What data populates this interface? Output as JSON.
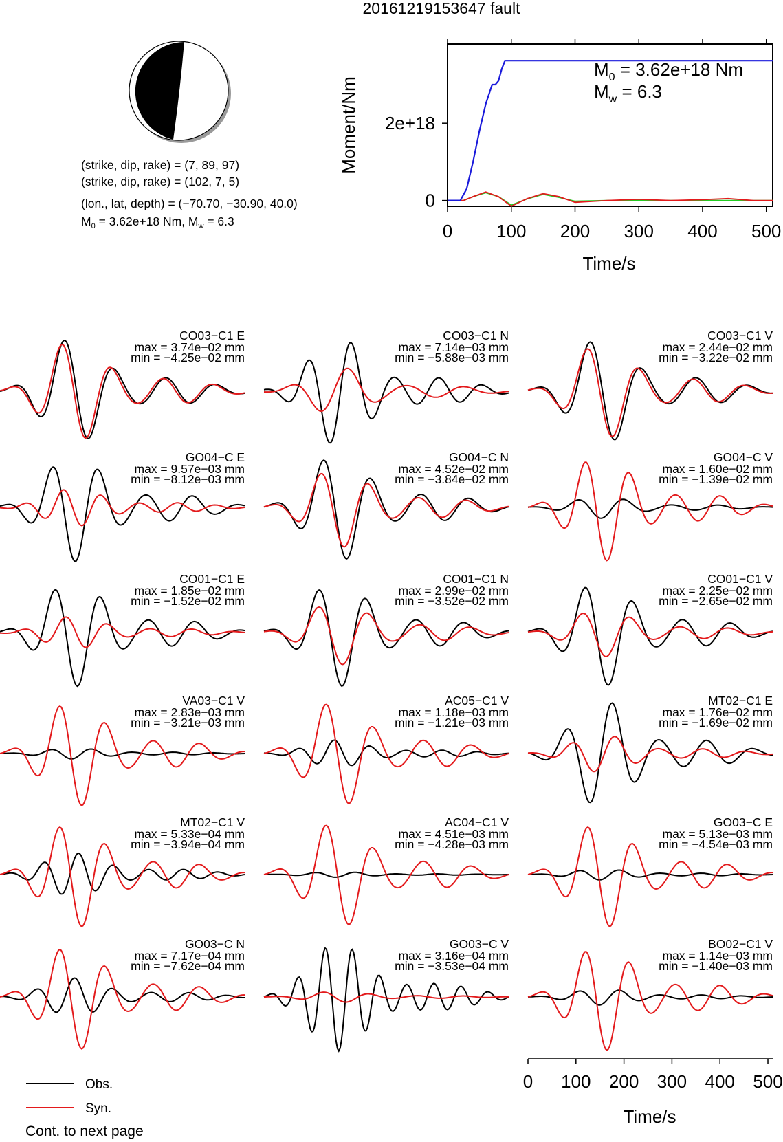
{
  "title": "20161219153647 fault",
  "mechanism": {
    "line1": "(strike, dip, rake) = (7, 89, 97)",
    "line2": "(strike, dip, rake) = (102, 7, 5)",
    "line3": "(lon., lat, depth) = (−70.70, −30.90, 40.0)",
    "m0_prefix": "M",
    "m0_sub": "0",
    "m0_rest": " = 3.62e+18 Nm, M",
    "mw_sub": "w",
    "mw_rest": " = 6.3"
  },
  "colors": {
    "obs": "#000000",
    "syn": "#e31a1c",
    "moment": "#1a1adb",
    "green": "#22cc22"
  },
  "moment_plot": {
    "ylabel": "Moment/Nm",
    "xlabel": "Time/s",
    "xticks": [
      "0",
      "100",
      "200",
      "300",
      "400",
      "500"
    ],
    "ytick_labels": [
      "0",
      "2e+18"
    ],
    "m0_sym": "M",
    "m0_sub": "0",
    "m0_text": " = 3.62e+18 Nm",
    "mw_sym": "M",
    "mw_sub": "w",
    "mw_text": " = 6.3"
  },
  "chart_data": {
    "type": "line",
    "title": "20161219153647 fault",
    "moment_rate_function": {
      "xlabel": "Time/s",
      "ylabel": "Moment/Nm",
      "xlim": [
        0,
        510
      ],
      "ylim": [
        -1.5e+17,
        4.05e+18
      ],
      "cumulative_moment": {
        "x": [
          0,
          20,
          30,
          40,
          50,
          60,
          70,
          75,
          80,
          85,
          90,
          510
        ],
        "y": [
          0,
          0,
          3e+17,
          1e+18,
          1.8e+18,
          2.5e+18,
          3e+18,
          3e+18,
          3.1e+18,
          3.4e+18,
          3.62e+18,
          3.62e+18
        ]
      },
      "red_curve": {
        "x": [
          0,
          25,
          40,
          60,
          80,
          100,
          125,
          150,
          175,
          200,
          250,
          300,
          350,
          400,
          440,
          480,
          510
        ],
        "y": [
          0,
          0,
          1e+17,
          2.2e+17,
          1e+17,
          -1.5e+17,
          5e+16,
          1.8e+17,
          1e+17,
          -5e+16,
          0.0,
          3e+16,
          0.0,
          2e+16,
          5e+16,
          0.0,
          0.0
        ]
      },
      "green_curve": {
        "x": [
          0,
          25,
          40,
          60,
          80,
          100,
          125,
          150,
          175,
          200,
          250,
          300,
          350,
          400,
          440,
          480,
          510
        ],
        "y": [
          0,
          0,
          1e+17,
          2e+17,
          1e+17,
          -1.2e+17,
          4e+16,
          1.6e+17,
          8e+16,
          -2e+16,
          0.0,
          1e+16,
          0.0,
          0.0,
          0.0,
          0.0,
          0.0
        ]
      }
    },
    "waveform_time_axis": {
      "xlabel": "Time/s",
      "ticks": [
        "0",
        "100",
        "200",
        "300",
        "400",
        "500"
      ],
      "xlim": [
        0,
        510
      ]
    },
    "legend": {
      "obs": "Obs.",
      "syn": "Syn."
    },
    "stations": [
      {
        "label": "CO03−C1 E",
        "max": "max = 3.74e−02 mm",
        "min": "min = −4.25e−02 mm",
        "obs_amp": 1.0,
        "syn_amp": 0.95,
        "obs_freq": 2.4,
        "syn_freq": 2.4,
        "phase": 0.0,
        "syn_phase": 0.1
      },
      {
        "label": "CO03−C1 N",
        "max": "max = 7.14e−03 mm",
        "min": "min = −5.88e−03 mm",
        "obs_amp": 1.0,
        "syn_amp": 0.45,
        "obs_freq": 2.8,
        "syn_freq": 2.1,
        "phase": 0.5,
        "syn_phase": 1.6
      },
      {
        "label": "CO03−C1 V",
        "max": "max = 2.44e−02 mm",
        "min": "min = −3.22e−02 mm",
        "obs_amp": 1.0,
        "syn_amp": 0.9,
        "obs_freq": 2.3,
        "syn_freq": 2.3,
        "phase": 0.2,
        "syn_phase": 0.3
      },
      {
        "label": "GO04−C E",
        "max": "max = 9.57e−03 mm",
        "min": "min = −8.12e−03 mm",
        "obs_amp": 1.0,
        "syn_amp": 0.35,
        "obs_freq": 2.6,
        "syn_freq": 3.2,
        "phase": 0.3,
        "syn_phase": 1.2
      },
      {
        "label": "GO04−C N",
        "max": "max = 4.52e−02 mm",
        "min": "min = −3.84e−02 mm",
        "obs_amp": 1.0,
        "syn_amp": 0.75,
        "obs_freq": 2.5,
        "syn_freq": 2.5,
        "phase": 0.1,
        "syn_phase": 0.2
      },
      {
        "label": "GO04−C V",
        "max": "max = 1.60e−02 mm",
        "min": "min = −1.39e−02 mm",
        "obs_amp": 0.2,
        "syn_amp": 1.0,
        "obs_freq": 2.6,
        "syn_freq": 2.7,
        "phase": 0.4,
        "syn_phase": 0.0
      },
      {
        "label": "CO01−C1 E",
        "max": "max = 1.85e−02 mm",
        "min": "min = −1.52e−02 mm",
        "obs_amp": 1.0,
        "syn_amp": 0.3,
        "obs_freq": 2.6,
        "syn_freq": 2.9,
        "phase": 0.2,
        "syn_phase": 1.4
      },
      {
        "label": "CO01−C1 N",
        "max": "max = 2.99e−02 mm",
        "min": "min = −3.52e−02 mm",
        "obs_amp": 1.0,
        "syn_amp": 0.6,
        "obs_freq": 2.5,
        "syn_freq": 2.4,
        "phase": 0.3,
        "syn_phase": 0.4
      },
      {
        "label": "CO01−C1 V",
        "max": "max = 2.25e−02 mm",
        "min": "min = −2.65e−02 mm",
        "obs_amp": 1.0,
        "syn_amp": 0.45,
        "obs_freq": 2.5,
        "syn_freq": 2.5,
        "phase": 0.2,
        "syn_phase": 0.3
      },
      {
        "label": "VA03−C1 V",
        "max": "max = 2.83e−03 mm",
        "min": "min = −3.21e−03 mm",
        "obs_amp": 0.1,
        "syn_amp": 1.0,
        "obs_freq": 3.0,
        "syn_freq": 2.6,
        "phase": 0.0,
        "syn_phase": 0.0
      },
      {
        "label": "AC05−C1 V",
        "max": "max = 1.18e−03 mm",
        "min": "min = −1.21e−03 mm",
        "obs_amp": 0.25,
        "syn_amp": 1.0,
        "obs_freq": 3.4,
        "syn_freq": 2.5,
        "phase": 0.6,
        "syn_phase": 0.0
      },
      {
        "label": "MT02−C1 E",
        "max": "max = 1.76e−02 mm",
        "min": "min = −1.69e−02 mm",
        "obs_amp": 1.0,
        "syn_amp": 0.35,
        "obs_freq": 2.6,
        "syn_freq": 2.8,
        "phase": 0.9,
        "syn_phase": 0.5
      },
      {
        "label": "MT02−C1 V",
        "max": "max = 5.33e−04 mm",
        "min": "min = −3.94e−04 mm",
        "obs_amp": 0.4,
        "syn_amp": 1.0,
        "obs_freq": 3.5,
        "syn_freq": 2.6,
        "phase": 0.0,
        "syn_phase": 0.0
      },
      {
        "label": "AC04−C1 V",
        "max": "max = 4.51e−03 mm",
        "min": "min = −4.28e−03 mm",
        "obs_amp": 0.05,
        "syn_amp": 1.0,
        "obs_freq": 3.0,
        "syn_freq": 2.5,
        "phase": 0.0,
        "syn_phase": 0.0
      },
      {
        "label": "GO03−C E",
        "max": "max = 5.13e−03 mm",
        "min": "min = −4.54e−03 mm",
        "obs_amp": 0.1,
        "syn_amp": 1.0,
        "obs_freq": 3.0,
        "syn_freq": 2.6,
        "phase": 0.0,
        "syn_phase": 0.0
      },
      {
        "label": "GO03−C N",
        "max": "max = 7.17e−04 mm",
        "min": "min = −7.62e−04 mm",
        "obs_amp": 0.35,
        "syn_amp": 1.0,
        "obs_freq": 3.2,
        "syn_freq": 2.6,
        "phase": 0.6,
        "syn_phase": 0.0
      },
      {
        "label": "GO03−C V",
        "max": "max = 3.16e−04 mm",
        "min": "min = −3.53e−04 mm",
        "obs_amp": 1.0,
        "syn_amp": 0.1,
        "obs_freq": 4.5,
        "syn_freq": 2.6,
        "phase": 0.0,
        "syn_phase": 0.0
      },
      {
        "label": "BO02−C1 V",
        "max": "max = 1.14e−03 mm",
        "min": "min = −1.40e−03 mm",
        "obs_amp": 0.15,
        "syn_amp": 1.0,
        "obs_freq": 3.0,
        "syn_freq": 2.7,
        "phase": 0.0,
        "syn_phase": 0.0
      }
    ]
  },
  "legend": {
    "obs": "Obs.",
    "syn": "Syn."
  },
  "footer": "Cont. to next page"
}
